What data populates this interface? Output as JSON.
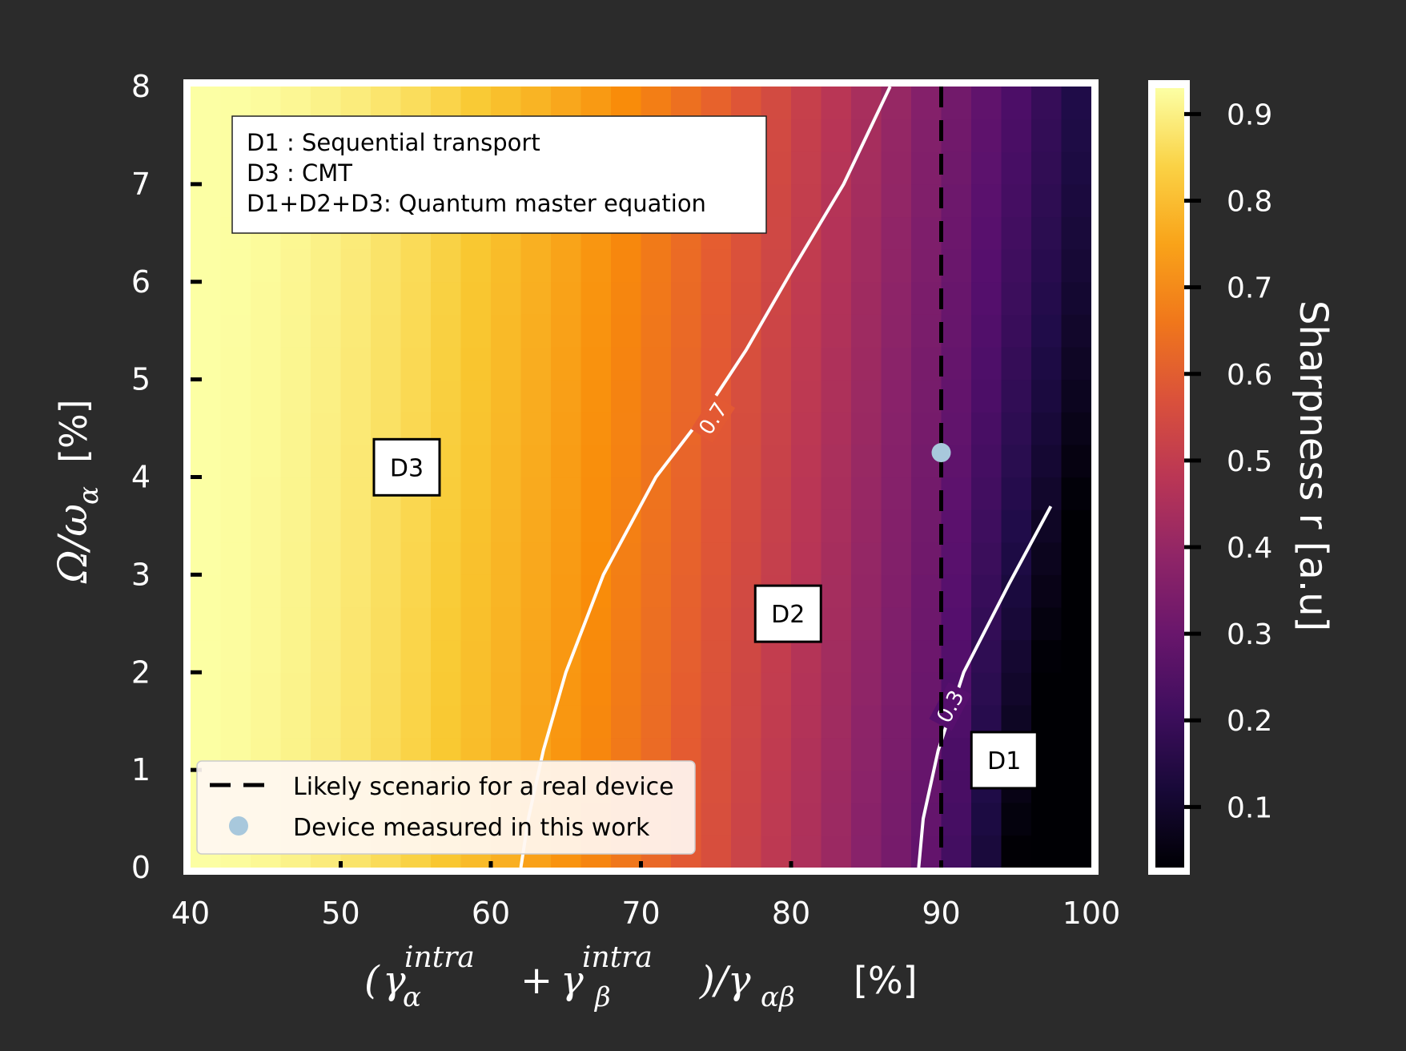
{
  "chart_data": {
    "type": "heatmap",
    "xlabel": "(γ_α^intra + γ_β^intra)/γ_αβ  [%]",
    "ylabel": "Ω/ω_α  [%]",
    "colorbar_label": "Sharpness r [a.u]",
    "xlim": [
      40,
      100
    ],
    "ylim": [
      0,
      8
    ],
    "x_ticks": [
      "40",
      "50",
      "60",
      "70",
      "80",
      "90",
      "100"
    ],
    "y_ticks": [
      "0",
      "1",
      "2",
      "3",
      "4",
      "5",
      "6",
      "7",
      "8"
    ],
    "colorbar_ticks": [
      "0.1",
      "0.2",
      "0.3",
      "0.4",
      "0.5",
      "0.6",
      "0.7",
      "0.8",
      "0.9"
    ],
    "colorbar_range": [
      0.03,
      0.93
    ],
    "colormap": "inferno",
    "contours": [
      {
        "level_label": "0.7",
        "points": [
          [
            62,
            0
          ],
          [
            62.5,
            0.5
          ],
          [
            63.5,
            1.2
          ],
          [
            65,
            2.0
          ],
          [
            67.5,
            3.0
          ],
          [
            71,
            4.0
          ],
          [
            74,
            4.6
          ],
          [
            77,
            5.3
          ],
          [
            80,
            6.1
          ],
          [
            83.5,
            7.0
          ],
          [
            86.6,
            8.0
          ]
        ]
      },
      {
        "level_label": "0.3",
        "points": [
          [
            88.5,
            0
          ],
          [
            88.8,
            0.5
          ],
          [
            89.8,
            1.2
          ],
          [
            91.5,
            2.0
          ],
          [
            94.5,
            2.9
          ],
          [
            97.3,
            3.7
          ]
        ]
      }
    ],
    "reference_line": {
      "x": 90,
      "label": "Likely scenario for a real device"
    },
    "device_point": {
      "x": 90,
      "y": 4.25,
      "label": "Device measured in this work"
    },
    "region_labels": [
      {
        "text": "D3",
        "x": 54.4,
        "y": 4.1
      },
      {
        "text": "D2",
        "x": 79.8,
        "y": 2.6
      },
      {
        "text": "D1",
        "x": 94.2,
        "y": 1.1
      }
    ],
    "annotation_lines": [
      "D1 : Sequential transport",
      "D3 : CMT",
      "D1+D2+D3: Quantum master equation"
    ],
    "colors": {
      "background": "#2b2b2b",
      "axis_text": "#ffffff",
      "contour": "#ffffff",
      "reference_line": "#000000",
      "device_point": "#a8c8dc"
    }
  }
}
